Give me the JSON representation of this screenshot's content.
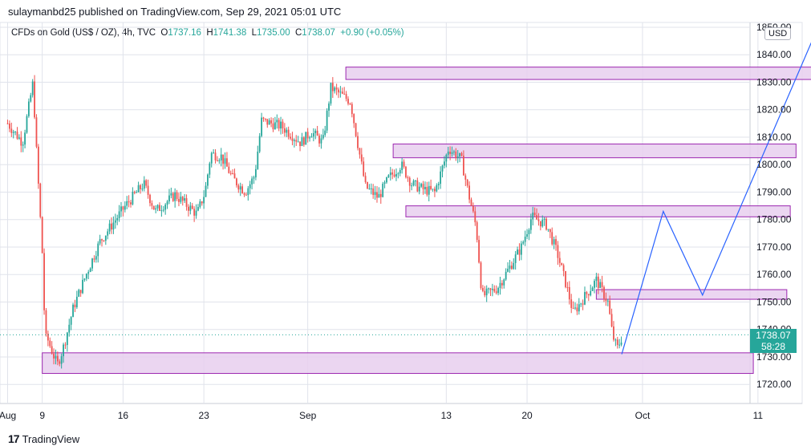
{
  "header": {
    "publisher": "sulaymanbd25 published on TradingView.com, Sep 29, 2021 05:01 UTC"
  },
  "symbol": {
    "name": "CFDs on Gold (US$ / OZ), 4h, TVC",
    "open_label": "O",
    "open": "1737.16",
    "high_label": "H",
    "high": "1741.38",
    "low_label": "L",
    "low": "1735.00",
    "close_label": "C",
    "close": "1738.07",
    "change": "+0.90 (+0.05%)"
  },
  "currency": "USD",
  "last_price": {
    "value": "1738.07",
    "countdown": "58:28"
  },
  "footer": {
    "brand": "TradingView"
  },
  "colors": {
    "up": "#26a69a",
    "down": "#ef5350",
    "zone_fill": "#e8cfee",
    "zone_stroke": "#9c27b0",
    "projection": "#2962ff",
    "grid": "#e0e3eb"
  },
  "chart_data": {
    "type": "candlestick",
    "timeframe": "4h",
    "xlabel": "",
    "ylabel": "",
    "ylim": [
      1713,
      1852
    ],
    "y_ticks": [
      1850,
      1840,
      1830,
      1820,
      1810,
      1800,
      1790,
      1780,
      1770,
      1760,
      1750,
      1740,
      1730,
      1720
    ],
    "y_tick_labels": [
      "1850.00",
      "1840.00",
      "1830.00",
      "1820.00",
      "1810.00",
      "1800.00",
      "1790.00",
      "1780.00",
      "1770.00",
      "1760.00",
      "1750.00",
      "1740.00",
      "1730.00",
      "1720.00"
    ],
    "x_ticks": [
      {
        "label": "Aug",
        "day": 6
      },
      {
        "label": "9",
        "day": 9
      },
      {
        "label": "16",
        "day": 16
      },
      {
        "label": "23",
        "day": 23
      },
      {
        "label": "Sep",
        "day": 32
      },
      {
        "label": "13",
        "day": 44
      },
      {
        "label": "20",
        "day": 51
      },
      {
        "label": "Oct",
        "day": 61
      },
      {
        "label": "11",
        "day": 71
      }
    ],
    "key_points": [
      {
        "day": 6.0,
        "price": 1815
      },
      {
        "day": 7.3,
        "price": 1808
      },
      {
        "day": 8.2,
        "price": 1830
      },
      {
        "day": 8.5,
        "price": 1805
      },
      {
        "day": 9.0,
        "price": 1768
      },
      {
        "day": 9.25,
        "price": 1737
      },
      {
        "day": 9.5,
        "price": 1736
      },
      {
        "day": 10.3,
        "price": 1727
      },
      {
        "day": 10.8,
        "price": 1733
      },
      {
        "day": 11.7,
        "price": 1748
      },
      {
        "day": 12.8,
        "price": 1760
      },
      {
        "day": 14.0,
        "price": 1772
      },
      {
        "day": 16.2,
        "price": 1785
      },
      {
        "day": 17.8,
        "price": 1793
      },
      {
        "day": 18.8,
        "price": 1783
      },
      {
        "day": 20.5,
        "price": 1789
      },
      {
        "day": 22.4,
        "price": 1782
      },
      {
        "day": 23.1,
        "price": 1790
      },
      {
        "day": 23.6,
        "price": 1804
      },
      {
        "day": 24.5,
        "price": 1803
      },
      {
        "day": 25.5,
        "price": 1795
      },
      {
        "day": 26.6,
        "price": 1790
      },
      {
        "day": 27.4,
        "price": 1796
      },
      {
        "day": 28.0,
        "price": 1816
      },
      {
        "day": 29.7,
        "price": 1814
      },
      {
        "day": 31.4,
        "price": 1808
      },
      {
        "day": 32.3,
        "price": 1812
      },
      {
        "day": 33.3,
        "price": 1808
      },
      {
        "day": 34.0,
        "price": 1828
      },
      {
        "day": 35.7,
        "price": 1823
      },
      {
        "day": 36.4,
        "price": 1806
      },
      {
        "day": 37.0,
        "price": 1792
      },
      {
        "day": 38.1,
        "price": 1788
      },
      {
        "day": 39.0,
        "price": 1795
      },
      {
        "day": 40.1,
        "price": 1800
      },
      {
        "day": 41.0,
        "price": 1793
      },
      {
        "day": 42.0,
        "price": 1791
      },
      {
        "day": 43.0,
        "price": 1790
      },
      {
        "day": 44.2,
        "price": 1806
      },
      {
        "day": 45.3,
        "price": 1802
      },
      {
        "day": 45.9,
        "price": 1790
      },
      {
        "day": 46.6,
        "price": 1777
      },
      {
        "day": 47.1,
        "price": 1752
      },
      {
        "day": 48.4,
        "price": 1755
      },
      {
        "day": 49.4,
        "price": 1762
      },
      {
        "day": 50.5,
        "price": 1770
      },
      {
        "day": 51.4,
        "price": 1781
      },
      {
        "day": 52.7,
        "price": 1778
      },
      {
        "day": 53.6,
        "price": 1768
      },
      {
        "day": 54.4,
        "price": 1756
      },
      {
        "day": 55.0,
        "price": 1746
      },
      {
        "day": 56.0,
        "price": 1752
      },
      {
        "day": 57.0,
        "price": 1758
      },
      {
        "day": 58.0,
        "price": 1750
      },
      {
        "day": 58.4,
        "price": 1738
      },
      {
        "day": 58.8,
        "price": 1733
      },
      {
        "day": 59.2,
        "price": 1737
      }
    ],
    "zones": [
      {
        "start_day": 35.3,
        "end_day": 77.0,
        "low": 1831,
        "high": 1835.5
      },
      {
        "start_day": 39.4,
        "end_day": 74.3,
        "low": 1802.5,
        "high": 1807.5
      },
      {
        "start_day": 40.5,
        "end_day": 73.8,
        "low": 1781,
        "high": 1785
      },
      {
        "start_day": 57.0,
        "end_day": 73.5,
        "low": 1751,
        "high": 1754.5
      },
      {
        "start_day": 9.0,
        "end_day": 70.6,
        "low": 1724,
        "high": 1731.5
      }
    ],
    "projection": [
      {
        "day": 59.2,
        "price": 1731
      },
      {
        "day": 62.8,
        "price": 1783
      },
      {
        "day": 66.2,
        "price": 1752.5
      },
      {
        "day": 76.4,
        "price": 1852
      }
    ],
    "current_price": 1738.07,
    "grid": true
  }
}
